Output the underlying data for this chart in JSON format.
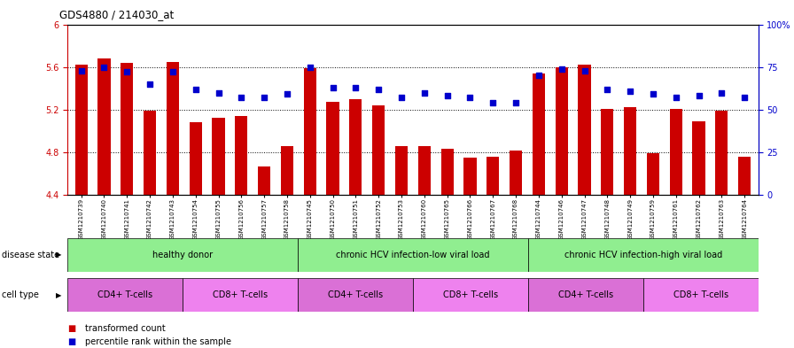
{
  "title": "GDS4880 / 214030_at",
  "samples": [
    "GSM1210739",
    "GSM1210740",
    "GSM1210741",
    "GSM1210742",
    "GSM1210743",
    "GSM1210754",
    "GSM1210755",
    "GSM1210756",
    "GSM1210757",
    "GSM1210758",
    "GSM1210745",
    "GSM1210750",
    "GSM1210751",
    "GSM1210752",
    "GSM1210753",
    "GSM1210760",
    "GSM1210765",
    "GSM1210766",
    "GSM1210767",
    "GSM1210768",
    "GSM1210744",
    "GSM1210746",
    "GSM1210747",
    "GSM1210748",
    "GSM1210749",
    "GSM1210759",
    "GSM1210761",
    "GSM1210762",
    "GSM1210763",
    "GSM1210764"
  ],
  "bar_values": [
    5.62,
    5.68,
    5.64,
    5.19,
    5.65,
    5.08,
    5.12,
    5.14,
    4.67,
    4.86,
    5.59,
    5.27,
    5.3,
    5.24,
    4.86,
    4.86,
    4.83,
    4.75,
    4.76,
    4.82,
    5.54,
    5.6,
    5.62,
    5.21,
    5.22,
    4.79,
    5.21,
    5.09,
    5.19,
    4.76
  ],
  "percentile_values": [
    73,
    75,
    72,
    65,
    72,
    62,
    60,
    57,
    57,
    59,
    75,
    63,
    63,
    62,
    57,
    60,
    58,
    57,
    54,
    54,
    70,
    74,
    73,
    62,
    61,
    59,
    57,
    58,
    60,
    57
  ],
  "bar_color": "#cc0000",
  "dot_color": "#0000cc",
  "ylim_left": [
    4.4,
    6.0
  ],
  "ylim_right": [
    0,
    100
  ],
  "yticks_left": [
    4.4,
    4.8,
    5.2,
    5.6,
    6.0
  ],
  "ytick_labels_left": [
    "4.4",
    "4.8",
    "5.2",
    "5.6",
    "6"
  ],
  "yticks_right": [
    0,
    25,
    50,
    75,
    100
  ],
  "ytick_labels_right": [
    "0",
    "25",
    "50",
    "75",
    "100%"
  ],
  "grid_lines": [
    4.8,
    5.2,
    5.6
  ],
  "disease_label": "disease state",
  "cell_type_label": "cell type",
  "legend_bar": "transformed count",
  "legend_dot": "percentile rank within the sample",
  "left_axis_color": "#cc0000",
  "right_axis_color": "#0000cc",
  "disease_green": "#90ee90",
  "cell_cd4_color": "#da70d6",
  "cell_cd8_color": "#ee82ee"
}
